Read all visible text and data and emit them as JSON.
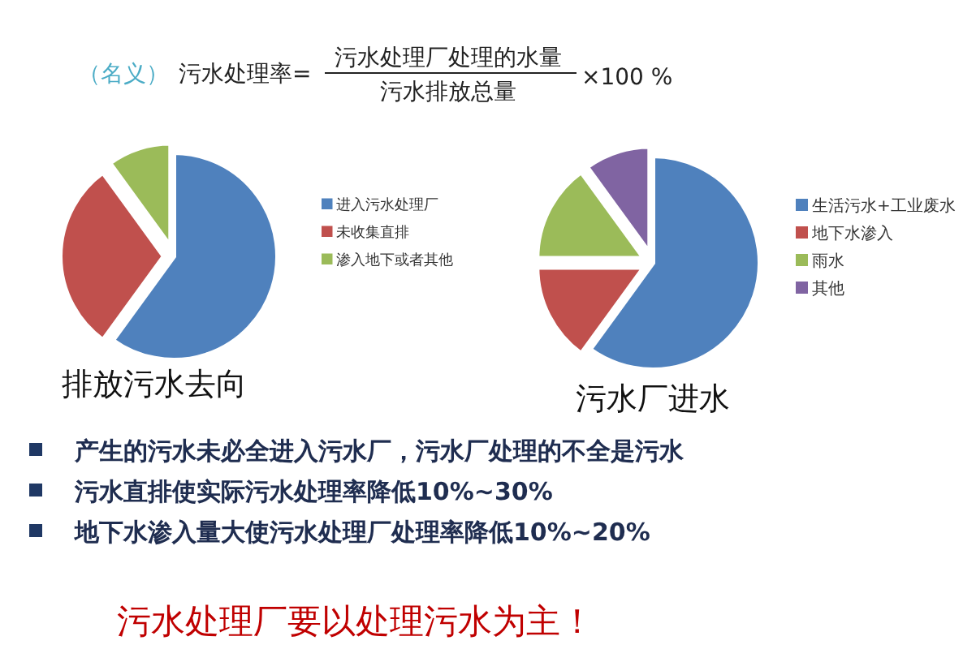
{
  "chart_data": [
    {
      "type": "other",
      "annotations": [
        "（名义）",
        "污水处理率=",
        "污水处理厂处理的水量",
        "污水排放总量",
        "×100 %"
      ]
    },
    {
      "type": "pie",
      "title": "排放污水去向",
      "categories": [
        "进入污水处理厂",
        "未收集直排",
        "渗入地下或者其他"
      ],
      "values": [
        60,
        30,
        10
      ],
      "colors": [
        "#4f81bd",
        "#c0504d",
        "#9bbb59"
      ],
      "legend": "right"
    },
    {
      "type": "pie",
      "title": "污水厂进水",
      "categories": [
        "生活污水+工业废水",
        "地下水渗入",
        "雨水",
        "其他"
      ],
      "values": [
        60,
        15,
        15,
        10
      ],
      "colors": [
        "#4f81bd",
        "#c0504d",
        "#9bbb59",
        "#8064a2"
      ],
      "legend": "right"
    },
    {
      "type": "other",
      "annotations": [
        "产生的污水未必全进入污水厂，污水厂处理的不全是污水",
        "污水直排使实际污水处理率降低10%~30%",
        "地下水渗入量大使污水处理厂处理率降低10%~20%",
        "污水处理厂要以处理污水为主！"
      ]
    }
  ]
}
